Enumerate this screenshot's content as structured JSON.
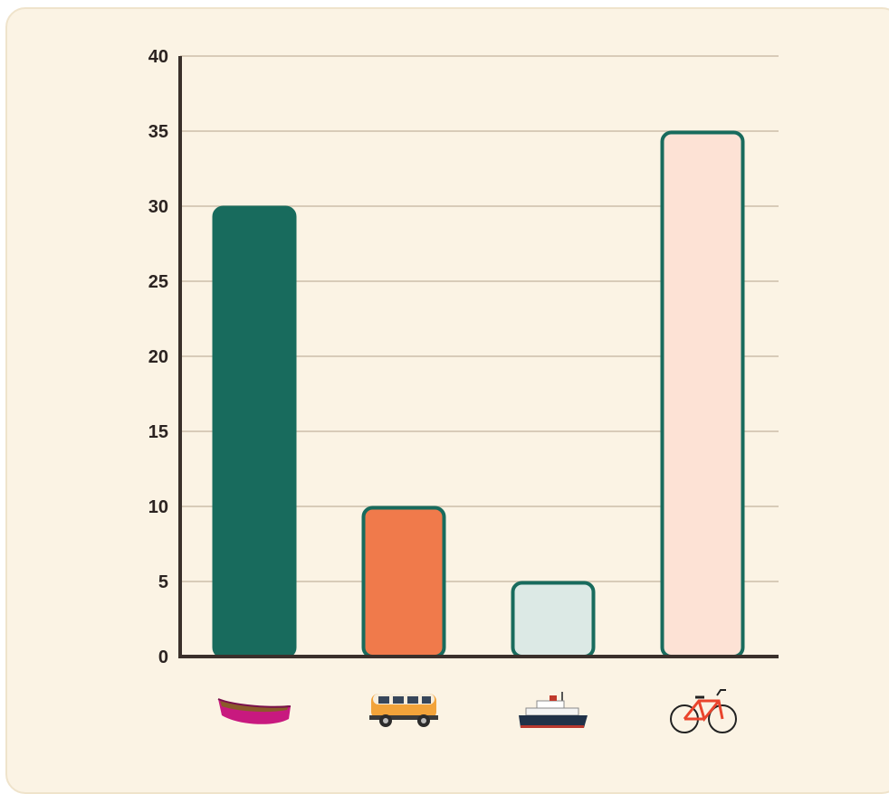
{
  "chart_data": {
    "type": "bar",
    "categories": [
      "canoe",
      "van",
      "ferry",
      "bicycle"
    ],
    "category_icons": [
      "canoe-icon",
      "van-icon",
      "ferry-icon",
      "bicycle-icon"
    ],
    "values": [
      30,
      10,
      5,
      35
    ],
    "ylim": [
      0,
      40
    ],
    "yticks": [
      "0",
      "5",
      "10",
      "15",
      "20",
      "25",
      "30",
      "35",
      "40"
    ],
    "grid": true,
    "legend": "none",
    "colors": {
      "background": "#fbf3e4",
      "card_border": "#efe3cb",
      "axis": "#3a302b",
      "grid": "#d8cbb8",
      "bar_stroke": "#186b5d",
      "bars": [
        "#186b5d",
        "#f07a4b",
        "#dce9e5",
        "#fde2d5"
      ]
    }
  }
}
